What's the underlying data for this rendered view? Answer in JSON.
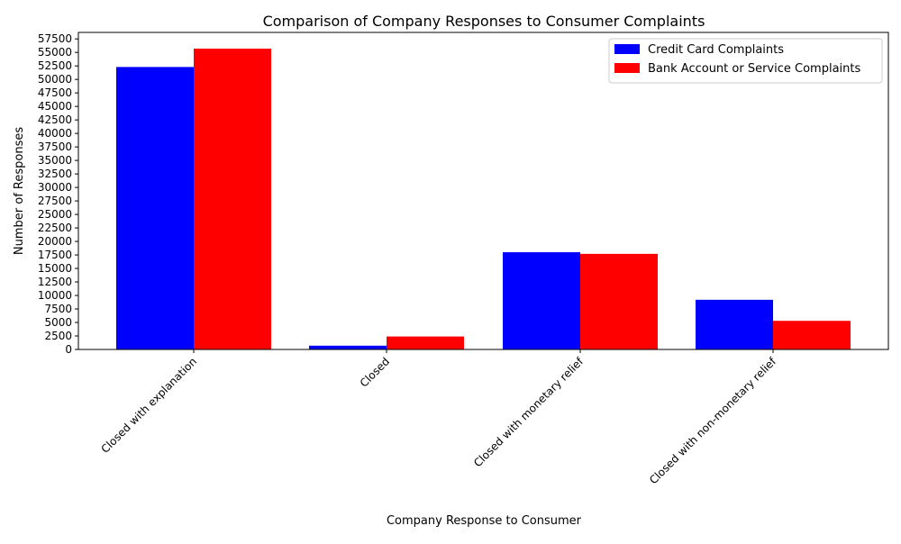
{
  "chart_data": {
    "type": "bar",
    "title": "Comparison of Company Responses to Consumer Complaints",
    "xlabel": "Company Response to Consumer",
    "ylabel": "Number of Responses",
    "categories": [
      "Closed with explanation",
      "Closed",
      "Closed with monetary relief",
      "Closed with non-monetary relief"
    ],
    "series": [
      {
        "name": "Credit Card Complaints",
        "color": "#0000ff",
        "values": [
          52300,
          700,
          18000,
          9200
        ]
      },
      {
        "name": "Bank Account or Service Complaints",
        "color": "#ff0000",
        "values": [
          55700,
          2400,
          17700,
          5300
        ]
      }
    ],
    "ylim": [
      0,
      58700
    ],
    "yticks": [
      0,
      2500,
      5000,
      7500,
      10000,
      12500,
      15000,
      17500,
      20000,
      22500,
      25000,
      27500,
      30000,
      32500,
      35000,
      37500,
      40000,
      42500,
      45000,
      47500,
      50000,
      52500,
      55000,
      57500
    ],
    "grid": false,
    "legend_position": "top-right"
  }
}
